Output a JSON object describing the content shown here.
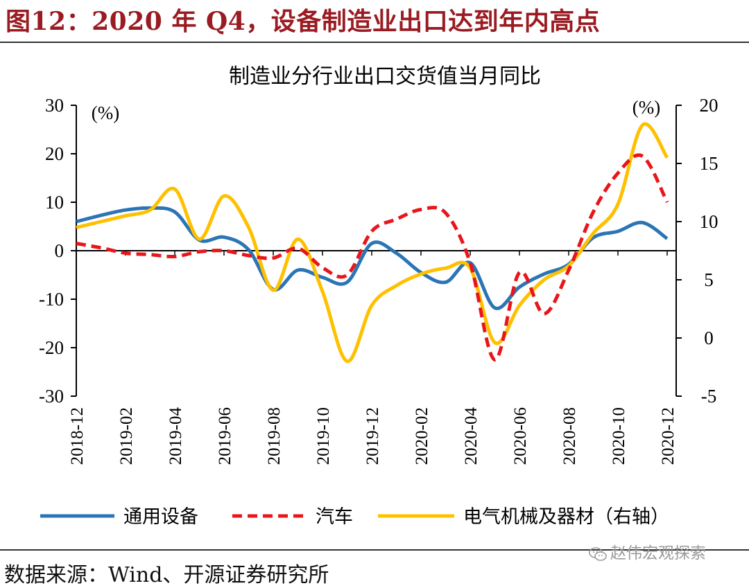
{
  "figure": {
    "title": "图12：2020 年 Q4，设备制造业出口达到年内高点",
    "source": "数据来源：Wind、开源证券研究所",
    "watermark": "赵伟宏观探索"
  },
  "chart_data": {
    "type": "line",
    "title": "制造业分行业出口交货值当月同比",
    "left_axis": {
      "unit": "(%)",
      "range": [
        -30,
        30
      ],
      "ticks": [
        "-30",
        "-20",
        "-10",
        "0",
        "10",
        "20",
        "30"
      ]
    },
    "right_axis": {
      "unit": "(%)",
      "range": [
        -5,
        20
      ],
      "ticks": [
        "-5",
        "0",
        "5",
        "10",
        "15",
        "20"
      ]
    },
    "x": [
      "2018-12",
      "2019-01",
      "2019-02",
      "2019-03",
      "2019-04",
      "2019-05",
      "2019-06",
      "2019-07",
      "2019-08",
      "2019-09",
      "2019-10",
      "2019-11",
      "2019-12",
      "2020-01",
      "2020-02",
      "2020-03",
      "2020-04",
      "2020-05",
      "2020-06",
      "2020-07",
      "2020-08",
      "2020-09",
      "2020-10",
      "2020-11",
      "2020-12"
    ],
    "x_tick_labels": [
      "2018-12",
      "2019-02",
      "2019-04",
      "2019-06",
      "2019-08",
      "2019-10",
      "2019-12",
      "2020-02",
      "2020-04",
      "2020-06",
      "2020-08",
      "2020-10",
      "2020-12"
    ],
    "grid": false,
    "legend_position": "bottom",
    "series": [
      {
        "name": "通用设备",
        "axis": "left",
        "color": "#2b75b5",
        "style": "solid",
        "values": [
          6,
          7.3,
          8.4,
          8.8,
          8.0,
          2.2,
          2.8,
          0.2,
          -8.0,
          -4.0,
          -5.5,
          -6.5,
          1.5,
          -0.5,
          -4.5,
          -6.5,
          -2.5,
          -11.8,
          -7.5,
          -4.8,
          -2.8,
          2.7,
          4.0,
          5.8,
          2.5
        ]
      },
      {
        "name": "汽车",
        "axis": "left",
        "color": "#e8161b",
        "style": "dashed",
        "values": [
          1.5,
          0.6,
          -0.5,
          -0.8,
          -1.2,
          -0.2,
          0.0,
          -1.0,
          -1.5,
          0.5,
          -3.5,
          -5.0,
          4.0,
          6.5,
          8.5,
          7.8,
          -2.5,
          -22.5,
          -4.5,
          -13.0,
          -4.0,
          8.0,
          16.0,
          19.5,
          10.0
        ]
      },
      {
        "name": "电气机械及器材（右轴）",
        "axis": "right",
        "color": "#ffc000",
        "style": "solid",
        "values": [
          9.5,
          10.0,
          10.5,
          11.0,
          12.8,
          8.5,
          12.2,
          9.5,
          4.1,
          8.5,
          4.0,
          -2.0,
          2.8,
          4.5,
          5.5,
          6.0,
          6.0,
          -0.4,
          2.8,
          5.0,
          6.2,
          9.0,
          11.5,
          18.3,
          15.5
        ]
      }
    ]
  }
}
